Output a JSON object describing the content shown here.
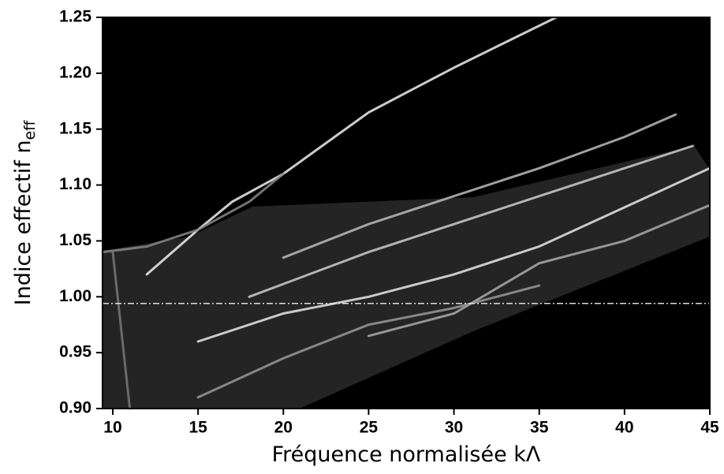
{
  "chart_data": {
    "type": "line",
    "xlabel": "Fréquence normalisée kΛ",
    "ylabel": "Indice effectif n",
    "ylabel_sub": "eff",
    "xlim": [
      9.4,
      45
    ],
    "ylim": [
      0.9,
      1.25
    ],
    "xticks": [
      10,
      15,
      20,
      25,
      30,
      35,
      40,
      45
    ],
    "yticks": [
      {
        "value": 0.9,
        "label": "0.90"
      },
      0.95,
      {
        "value": 1.0,
        "label": "1.00"
      },
      1.05,
      {
        "value": 1.1,
        "label": "1.10"
      },
      1.15,
      {
        "value": 1.2,
        "label": "1.20"
      },
      1.25
    ],
    "hline": 0.994,
    "hline_color": "#dddddd",
    "background": "#000000",
    "series": [
      {
        "color": "#f0f0f0",
        "x": [
          12,
          15,
          17,
          20,
          25,
          30,
          36
        ],
        "values": [
          1.02,
          1.06,
          1.085,
          1.11,
          1.165,
          1.205,
          1.25
        ]
      },
      {
        "color": "#bbbbbb",
        "x": [
          20,
          25,
          30,
          35,
          40,
          43
        ],
        "values": [
          1.035,
          1.065,
          1.09,
          1.115,
          1.143,
          1.163
        ]
      },
      {
        "color": "#cccccc",
        "x": [
          18,
          25,
          30,
          35,
          40,
          44
        ],
        "values": [
          1.0,
          1.04,
          1.065,
          1.09,
          1.115,
          1.135
        ]
      },
      {
        "color": "#e8e8e8",
        "x": [
          15,
          20,
          25,
          30,
          35,
          40,
          45
        ],
        "values": [
          0.96,
          0.985,
          1.0,
          1.02,
          1.045,
          1.08,
          1.115
        ]
      },
      {
        "color": "#aaaaaa",
        "x": [
          25,
          30,
          35,
          40,
          45
        ],
        "values": [
          0.965,
          0.985,
          1.03,
          1.05,
          1.082
        ]
      },
      {
        "color": "#999999",
        "x": [
          15,
          20,
          25,
          30,
          35
        ],
        "values": [
          0.91,
          0.945,
          0.975,
          0.99,
          1.01
        ]
      },
      {
        "color": "#888888",
        "x": [
          9.4,
          12,
          15,
          18,
          20
        ],
        "values": [
          1.04,
          1.045,
          1.06,
          1.085,
          1.11
        ]
      },
      {
        "color": "#777777",
        "x": [
          10,
          11
        ],
        "values": [
          1.04,
          0.9
        ]
      }
    ]
  }
}
